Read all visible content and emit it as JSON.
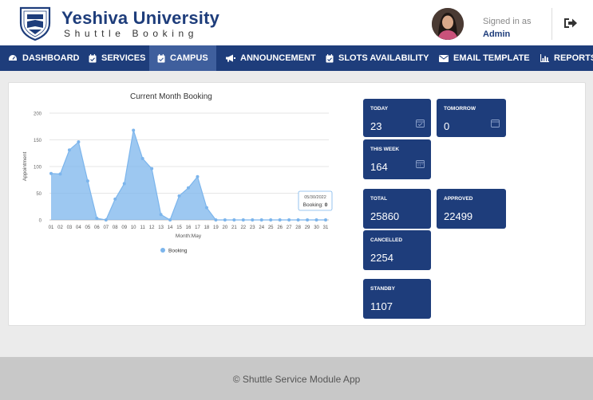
{
  "brand": {
    "title": "Yeshiva University",
    "subtitle": "Shuttle Booking"
  },
  "user": {
    "signed_in_label": "Signed in as",
    "name": "Admin"
  },
  "nav": {
    "items": [
      {
        "label": "DASHBOARD",
        "icon": "dashboard-icon",
        "active": false
      },
      {
        "label": "SERVICES",
        "icon": "calendar-check-icon",
        "active": false
      },
      {
        "label": "CAMPUS",
        "icon": "calendar-check-icon",
        "active": true
      },
      {
        "label": "ANNOUNCEMENT",
        "icon": "megaphone-icon",
        "active": false
      },
      {
        "label": "SLOTS AVAILABILITY",
        "icon": "calendar-check-icon",
        "active": false
      },
      {
        "label": "EMAIL TEMPLATE",
        "icon": "envelope-icon",
        "active": false
      },
      {
        "label": "REPORTS",
        "icon": "bar-chart-icon",
        "active": false
      }
    ]
  },
  "chart_data": {
    "type": "area",
    "title": "Current Month Booking",
    "xlabel": "Month:May",
    "ylabel": "Appointment",
    "ylim": [
      0,
      200
    ],
    "yticks": [
      0,
      50,
      100,
      150,
      200
    ],
    "grid": true,
    "legend_position": "bottom",
    "categories": [
      "01",
      "02",
      "03",
      "04",
      "05",
      "06",
      "07",
      "08",
      "09",
      "10",
      "11",
      "12",
      "13",
      "14",
      "15",
      "16",
      "17",
      "18",
      "19",
      "20",
      "21",
      "22",
      "23",
      "24",
      "25",
      "26",
      "27",
      "28",
      "29",
      "30",
      "31"
    ],
    "series": [
      {
        "name": "Booking",
        "color": "#7cb5ec",
        "values": [
          87,
          86,
          131,
          146,
          73,
          3,
          0,
          39,
          68,
          168,
          115,
          96,
          10,
          0,
          45,
          60,
          81,
          23,
          0,
          0,
          0,
          0,
          0,
          0,
          0,
          0,
          0,
          0,
          0,
          0,
          0
        ]
      }
    ],
    "tooltip": {
      "date": "05/30/2022",
      "label": "Booking:",
      "value": "0"
    }
  },
  "cards": {
    "today": {
      "label": "TODAY",
      "value": "23"
    },
    "tomorrow": {
      "label": "TOMORROW",
      "value": "0"
    },
    "this_week": {
      "label": "THIS WEEK",
      "value": "164"
    },
    "total": {
      "label": "TOTAL",
      "value": "25860"
    },
    "approved": {
      "label": "APPROVED",
      "value": "22499"
    },
    "cancelled": {
      "label": "CANCELLED",
      "value": "2254"
    },
    "standby": {
      "label": "STANDBY",
      "value": "1107"
    }
  },
  "footer": {
    "text": "© Shuttle Service Module App"
  }
}
